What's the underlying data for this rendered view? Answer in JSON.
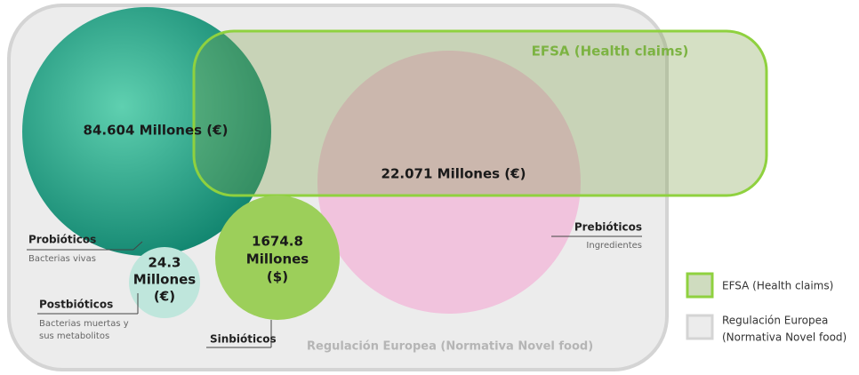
{
  "sets": {
    "efsa": {
      "label": "EFSA (Health claims)"
    },
    "regulacion": {
      "label": "Regulación Europea (Normativa Novel food)"
    }
  },
  "nodes": [
    {
      "value": "84.604 Millones (€)",
      "name": "Probióticos",
      "desc": [
        "Bacterias vivas"
      ]
    },
    {
      "value": "22.071 Millones (€)",
      "name": "Prebióticos",
      "desc": [
        "Ingredientes"
      ]
    },
    {
      "value": [
        "1674.8",
        "Millones",
        "($)"
      ],
      "name": "Sinbióticos"
    },
    {
      "value": [
        "24.3",
        "Millones",
        "(€)"
      ],
      "name": "Postbióticos",
      "desc": [
        "Bacterias muertas y",
        "sus metabolitos"
      ]
    }
  ],
  "legend": [
    {
      "label": [
        "EFSA (Health claims)"
      ]
    },
    {
      "label": [
        "Regulación Europea",
        "(Normativa Novel food)"
      ]
    }
  ]
}
